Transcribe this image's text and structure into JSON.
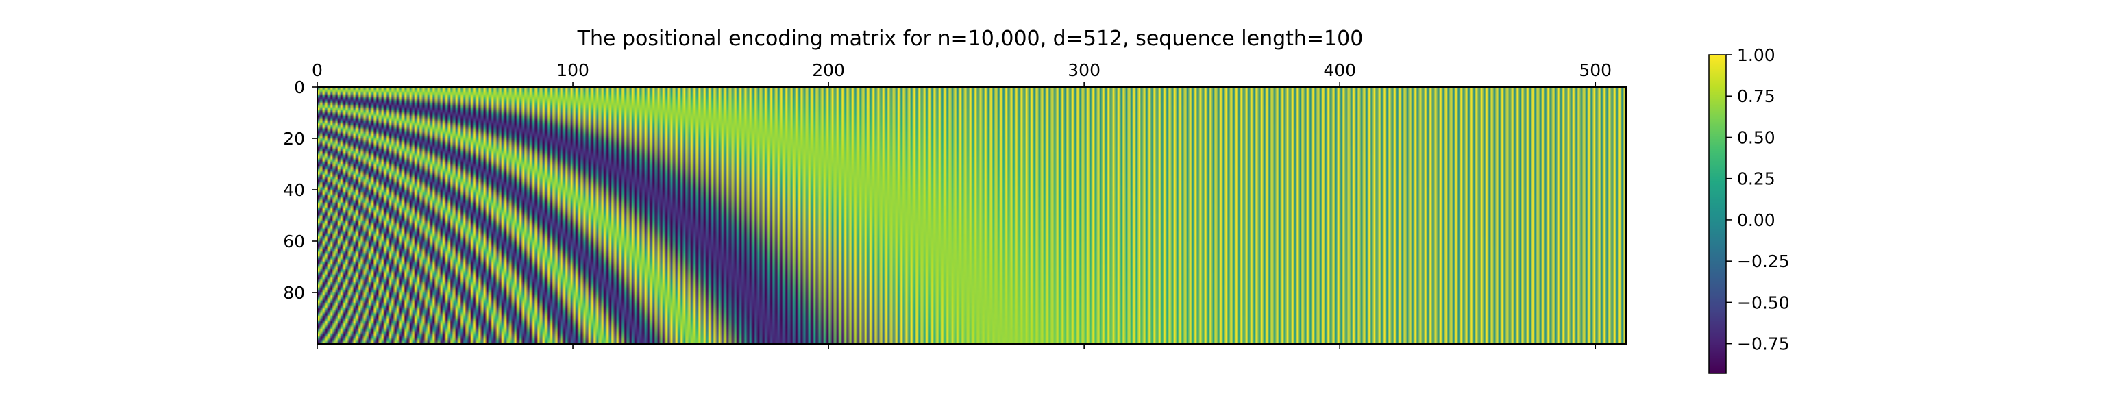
{
  "chart_data": {
    "type": "heatmap",
    "title": "The positional encoding matrix for n=10,000, d=512, sequence length=100",
    "n": 10000,
    "d": 512,
    "sequence_length": 100,
    "xlim": [
      0,
      512
    ],
    "ylim": [
      0,
      100
    ],
    "x_ticks": [
      0,
      100,
      200,
      300,
      400,
      500
    ],
    "x_tick_labels": [
      "0",
      "100",
      "200",
      "300",
      "400",
      "500"
    ],
    "x_ticks_position": "top",
    "y_ticks": [
      0,
      20,
      40,
      60,
      80
    ],
    "y_tick_labels": [
      "0",
      "20",
      "40",
      "60",
      "80"
    ],
    "y_axis_inverted": true,
    "colormap": "viridis",
    "colorbar": {
      "vmin": -0.93,
      "vmax": 1.0,
      "ticks": [
        1.0,
        0.75,
        0.5,
        0.25,
        0.0,
        -0.25,
        -0.5,
        -0.75
      ],
      "tick_labels": [
        "1.00",
        "0.75",
        "0.50",
        "0.25",
        "0.00",
        "−0.25",
        "−0.50",
        "−0.75"
      ],
      "placement": "right"
    },
    "grid": false
  }
}
